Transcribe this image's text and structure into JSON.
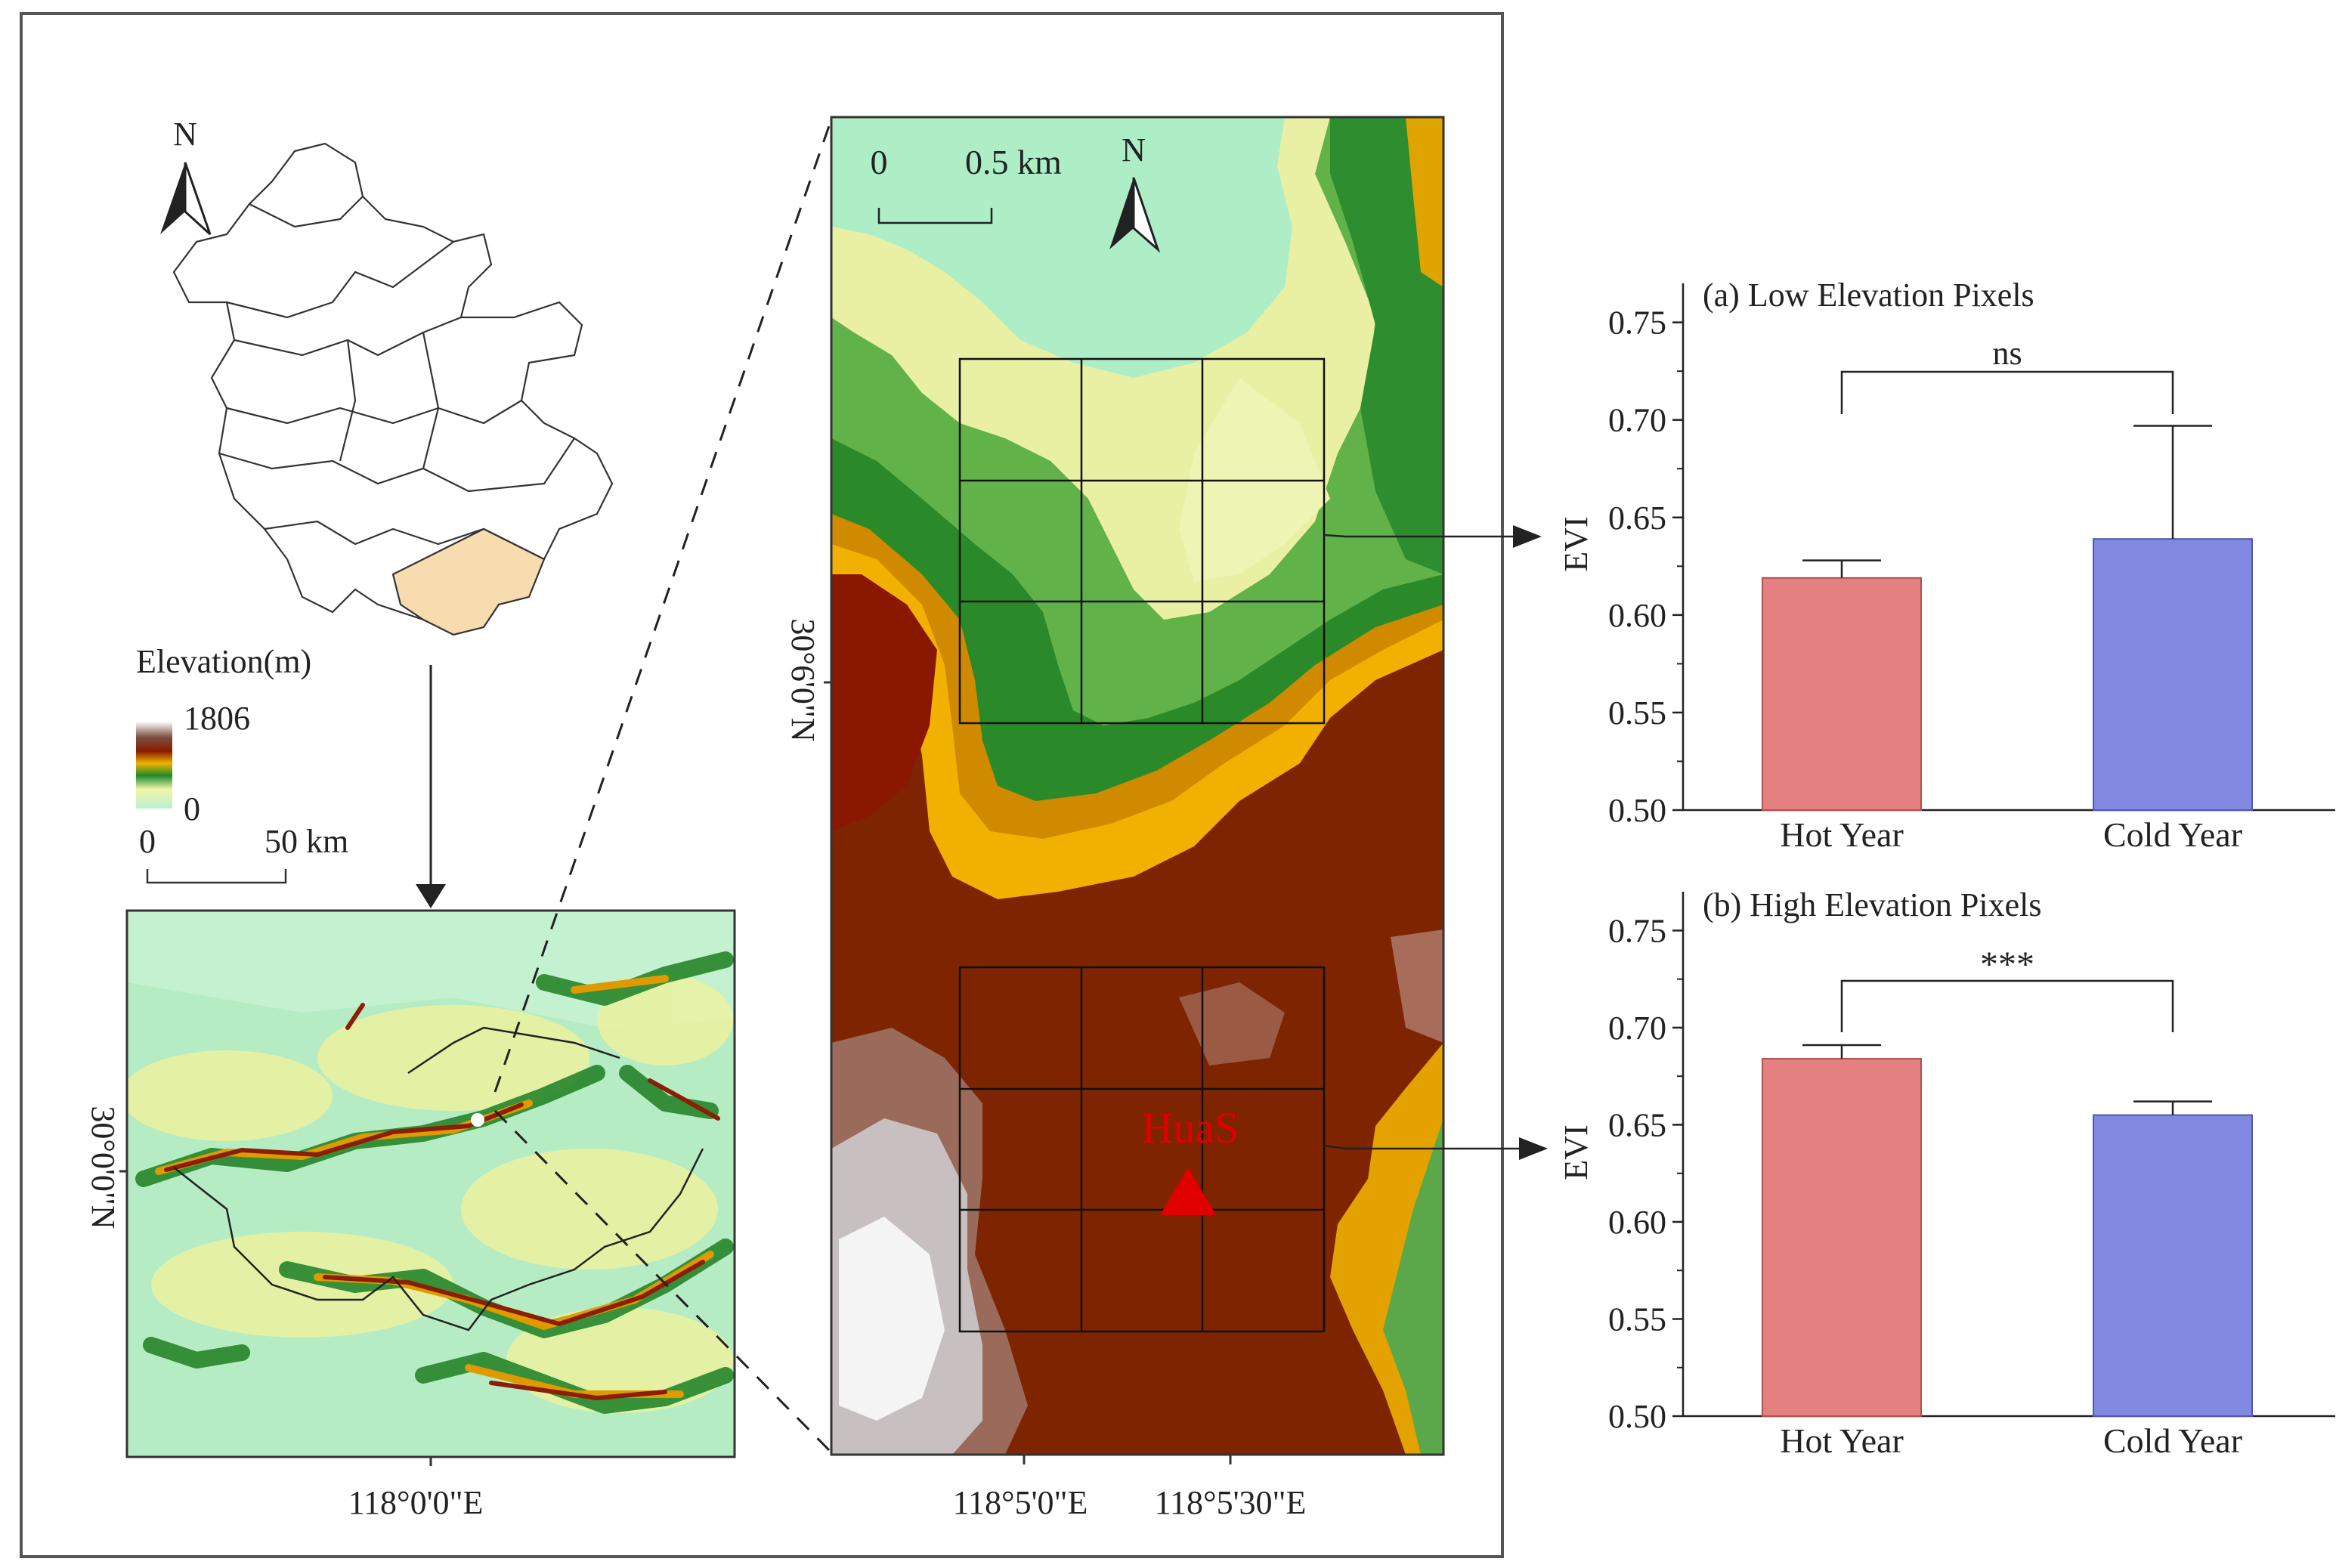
{
  "overview_map": {
    "north_label": "N",
    "legend_title": "Elevation(m)",
    "legend_max": "1806",
    "legend_min": "0",
    "scalebar_start": "0",
    "scalebar_end": "50 km"
  },
  "regional_map": {
    "lat_label": "30°0'0\"N",
    "lon_label": "118°0'0\"E"
  },
  "detail_map": {
    "north_label": "N",
    "scalebar_start": "0",
    "scalebar_end": "0.5 km",
    "lat_label": "30°6'0\"N",
    "lon_label_1": "118°5'0\"E",
    "lon_label_2": "118°5'30\"E",
    "site_label": "HuaS"
  },
  "chart_data": [
    {
      "type": "bar",
      "title": "(a) Low Elevation Pixels",
      "ylabel": "EVI",
      "categories": [
        "Hot Year",
        "Cold Year"
      ],
      "values": [
        0.619,
        0.639
      ],
      "error": [
        0.009,
        0.058
      ],
      "colors": [
        "#e58080",
        "#8088e0"
      ],
      "ylim": [
        0.5,
        0.77
      ],
      "yticks": [
        "0.50",
        "0.55",
        "0.60",
        "0.65",
        "0.70",
        "0.75"
      ],
      "significance": "ns"
    },
    {
      "type": "bar",
      "title": "(b) High Elevation Pixels",
      "ylabel": "EVI",
      "categories": [
        "Hot Year",
        "Cold Year"
      ],
      "values": [
        0.684,
        0.655
      ],
      "error": [
        0.007,
        0.007
      ],
      "colors": [
        "#e58080",
        "#8088e0"
      ],
      "ylim": [
        0.5,
        0.77
      ],
      "yticks": [
        "0.50",
        "0.55",
        "0.60",
        "0.65",
        "0.70",
        "0.75"
      ],
      "significance": "***"
    }
  ]
}
